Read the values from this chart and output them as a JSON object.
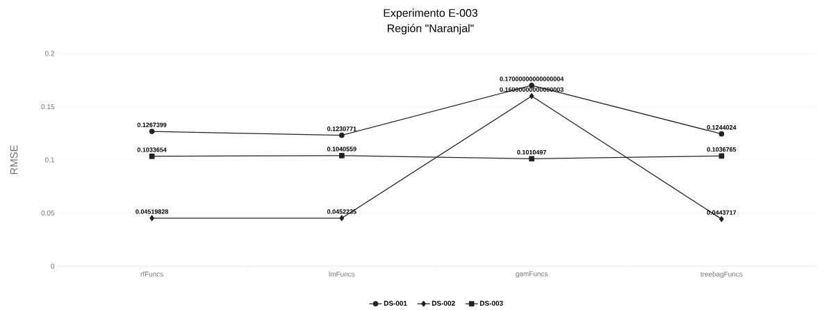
{
  "chart_data": {
    "type": "line",
    "title": "Experimento E-003",
    "subtitle": "Región \"Naranjal\"",
    "ylabel": "RMSE",
    "categories": [
      "rfFuncs",
      "lmFuncs",
      "gamFuncs",
      "treebagFuncs"
    ],
    "series": [
      {
        "name": "DS-001",
        "color": "#222222",
        "marker": "circle",
        "values": [
          0.1267399,
          0.1230771,
          0.17000000000000004,
          0.1244024
        ],
        "value_labels": [
          "0.1267399",
          "0.1230771",
          "0.17000000000000004",
          "0.1244024"
        ]
      },
      {
        "name": "DS-002",
        "color": "#222222",
        "marker": "diamond",
        "values": [
          0.04519828,
          0.0452235,
          0.16000000000000003,
          0.0443717
        ],
        "value_labels": [
          "0.04519828",
          "0.0452235",
          "0.16000000000000003",
          "0.0443717"
        ]
      },
      {
        "name": "DS-003",
        "color": "#222222",
        "marker": "square",
        "values": [
          0.1033654,
          0.1040559,
          0.1010497,
          0.1036765
        ],
        "value_labels": [
          "0.1033654",
          "0.1040559",
          "0.1010497",
          "0.1036765"
        ]
      }
    ],
    "ylim": [
      0,
      0.2
    ],
    "yticks": [
      0,
      0.05,
      0.1,
      0.15,
      0.2
    ],
    "grid": "y",
    "legend": "bottom",
    "line_style": "solid"
  }
}
